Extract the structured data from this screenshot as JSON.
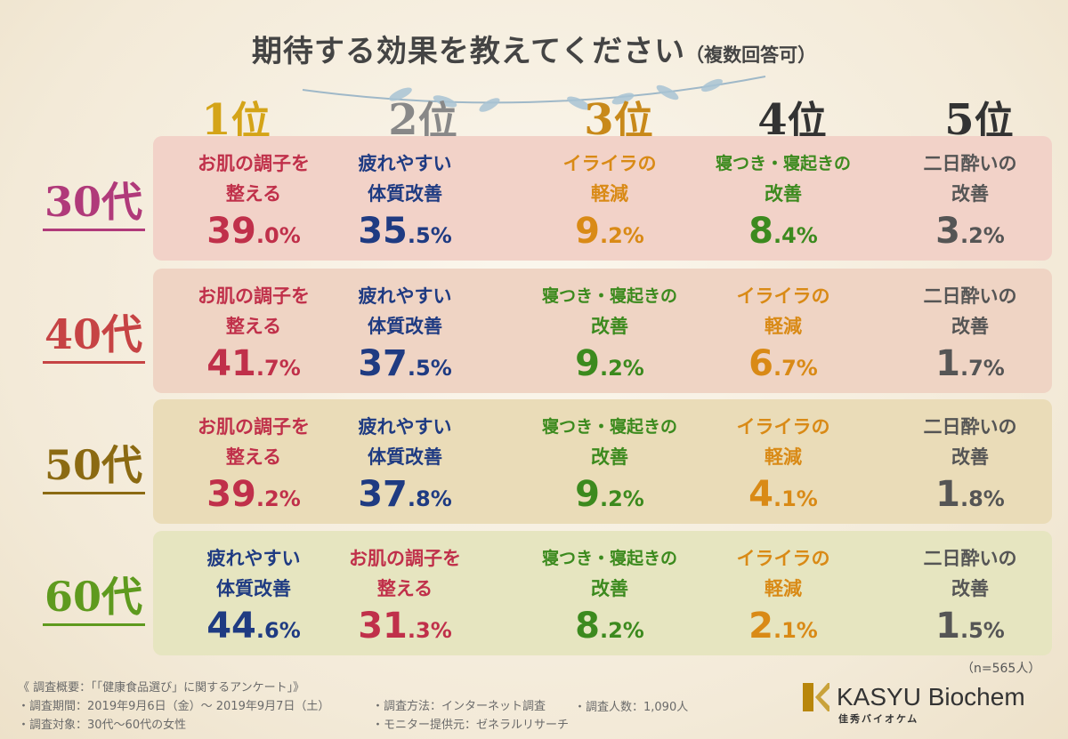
{
  "title": {
    "main": "期待する効果を教えてください",
    "sub": "（複数回答可）"
  },
  "ranks": [
    {
      "num": "1",
      "suffix": "位",
      "color": "#d4a418"
    },
    {
      "num": "2",
      "suffix": "位",
      "color": "#888888"
    },
    {
      "num": "3",
      "suffix": "位",
      "color": "#c8891a"
    },
    {
      "num": "4",
      "suffix": "位",
      "color": "#333333"
    },
    {
      "num": "5",
      "suffix": "位",
      "color": "#333333"
    }
  ],
  "rows": [
    {
      "age": "30",
      "age_suffix": "代",
      "age_color": "#b03a7a",
      "bg": "#f2d2c8",
      "cells": [
        {
          "l1": "お肌の調子を",
          "l2": "整える",
          "v": "39",
          "d": ".0%",
          "c": "red"
        },
        {
          "l1": "疲れやすい",
          "l2": "体質改善",
          "v": "35",
          "d": ".5%",
          "c": "blue"
        },
        {
          "l1": "イライラの",
          "l2": "軽減",
          "v": "9",
          "d": ".2%",
          "c": "orange"
        },
        {
          "l1": "寝つき・寝起きの",
          "l2": "改善",
          "v": "8",
          "d": ".4%",
          "c": "green"
        },
        {
          "l1": "二日酔いの",
          "l2": "改善",
          "v": "3",
          "d": ".2%",
          "c": "gray"
        }
      ]
    },
    {
      "age": "40",
      "age_suffix": "代",
      "age_color": "#c64344",
      "bg": "#efd4c4",
      "cells": [
        {
          "l1": "お肌の調子を",
          "l2": "整える",
          "v": "41",
          "d": ".7%",
          "c": "red"
        },
        {
          "l1": "疲れやすい",
          "l2": "体質改善",
          "v": "37",
          "d": ".5%",
          "c": "blue"
        },
        {
          "l1": "寝つき・寝起きの",
          "l2": "改善",
          "v": "9",
          "d": ".2%",
          "c": "green"
        },
        {
          "l1": "イライラの",
          "l2": "軽減",
          "v": "6",
          "d": ".7%",
          "c": "orange"
        },
        {
          "l1": "二日酔いの",
          "l2": "改善",
          "v": "1",
          "d": ".7%",
          "c": "gray"
        }
      ]
    },
    {
      "age": "50",
      "age_suffix": "代",
      "age_color": "#8b6a12",
      "bg": "#eadcb8",
      "cells": [
        {
          "l1": "お肌の調子を",
          "l2": "整える",
          "v": "39",
          "d": ".2%",
          "c": "red"
        },
        {
          "l1": "疲れやすい",
          "l2": "体質改善",
          "v": "37",
          "d": ".8%",
          "c": "blue"
        },
        {
          "l1": "寝つき・寝起きの",
          "l2": "改善",
          "v": "9",
          "d": ".2%",
          "c": "green"
        },
        {
          "l1": "イライラの",
          "l2": "軽減",
          "v": "4",
          "d": ".1%",
          "c": "orange"
        },
        {
          "l1": "二日酔いの",
          "l2": "改善",
          "v": "1",
          "d": ".8%",
          "c": "gray"
        }
      ]
    },
    {
      "age": "60",
      "age_suffix": "代",
      "age_color": "#5e9a1e",
      "bg": "#e6e5c0",
      "cells": [
        {
          "l1": "疲れやすい",
          "l2": "体質改善",
          "v": "44",
          "d": ".6%",
          "c": "blue"
        },
        {
          "l1": "お肌の調子を",
          "l2": "整える",
          "v": "31",
          "d": ".3%",
          "c": "red"
        },
        {
          "l1": "寝つき・寝起きの",
          "l2": "改善",
          "v": "8",
          "d": ".2%",
          "c": "green"
        },
        {
          "l1": "イライラの",
          "l2": "軽減",
          "v": "2",
          "d": ".1%",
          "c": "orange"
        },
        {
          "l1": "二日酔いの",
          "l2": "改善",
          "v": "1",
          "d": ".5%",
          "c": "gray"
        }
      ]
    }
  ],
  "chart_data": {
    "type": "table",
    "title": "期待する効果を教えてください（複数回答可）",
    "columns": [
      "1位",
      "2位",
      "3位",
      "4位",
      "5位"
    ],
    "rows": [
      {
        "age": "30代",
        "items": [
          [
            "お肌の調子を整える",
            39.0
          ],
          [
            "疲れやすい体質改善",
            35.5
          ],
          [
            "イライラの軽減",
            9.2
          ],
          [
            "寝つき・寝起きの改善",
            8.4
          ],
          [
            "二日酔いの改善",
            3.2
          ]
        ]
      },
      {
        "age": "40代",
        "items": [
          [
            "お肌の調子を整える",
            41.7
          ],
          [
            "疲れやすい体質改善",
            37.5
          ],
          [
            "寝つき・寝起きの改善",
            9.2
          ],
          [
            "イライラの軽減",
            6.7
          ],
          [
            "二日酔いの改善",
            1.7
          ]
        ]
      },
      {
        "age": "50代",
        "items": [
          [
            "お肌の調子を整える",
            39.2
          ],
          [
            "疲れやすい体質改善",
            37.8
          ],
          [
            "寝つき・寝起きの改善",
            9.2
          ],
          [
            "イライラの軽減",
            4.1
          ],
          [
            "二日酔いの改善",
            1.8
          ]
        ]
      },
      {
        "age": "60代",
        "items": [
          [
            "疲れやすい体質改善",
            44.6
          ],
          [
            "お肌の調子を整える",
            31.3
          ],
          [
            "寝つき・寝起きの改善",
            8.2
          ],
          [
            "イライラの軽減",
            2.1
          ],
          [
            "二日酔いの改善",
            1.5
          ]
        ]
      }
    ],
    "unit": "%"
  },
  "sample_note": "（n=565人）",
  "footer": {
    "heading": "《 調査概要：「「健康食品選び」に関するアンケート」》",
    "period": "・調査期間：2019年9月6日（金）～ 2019年9月7日（土）",
    "target": "・調査対象：30代～60代の女性",
    "method": "・調査方法：インターネット調査",
    "count": "・調査人数：1,090人",
    "monitor": "・モニター提供元：ゼネラルリサーチ"
  },
  "brand": {
    "name": "KASYU Biochem",
    "kana": "佳秀バイオケム"
  }
}
